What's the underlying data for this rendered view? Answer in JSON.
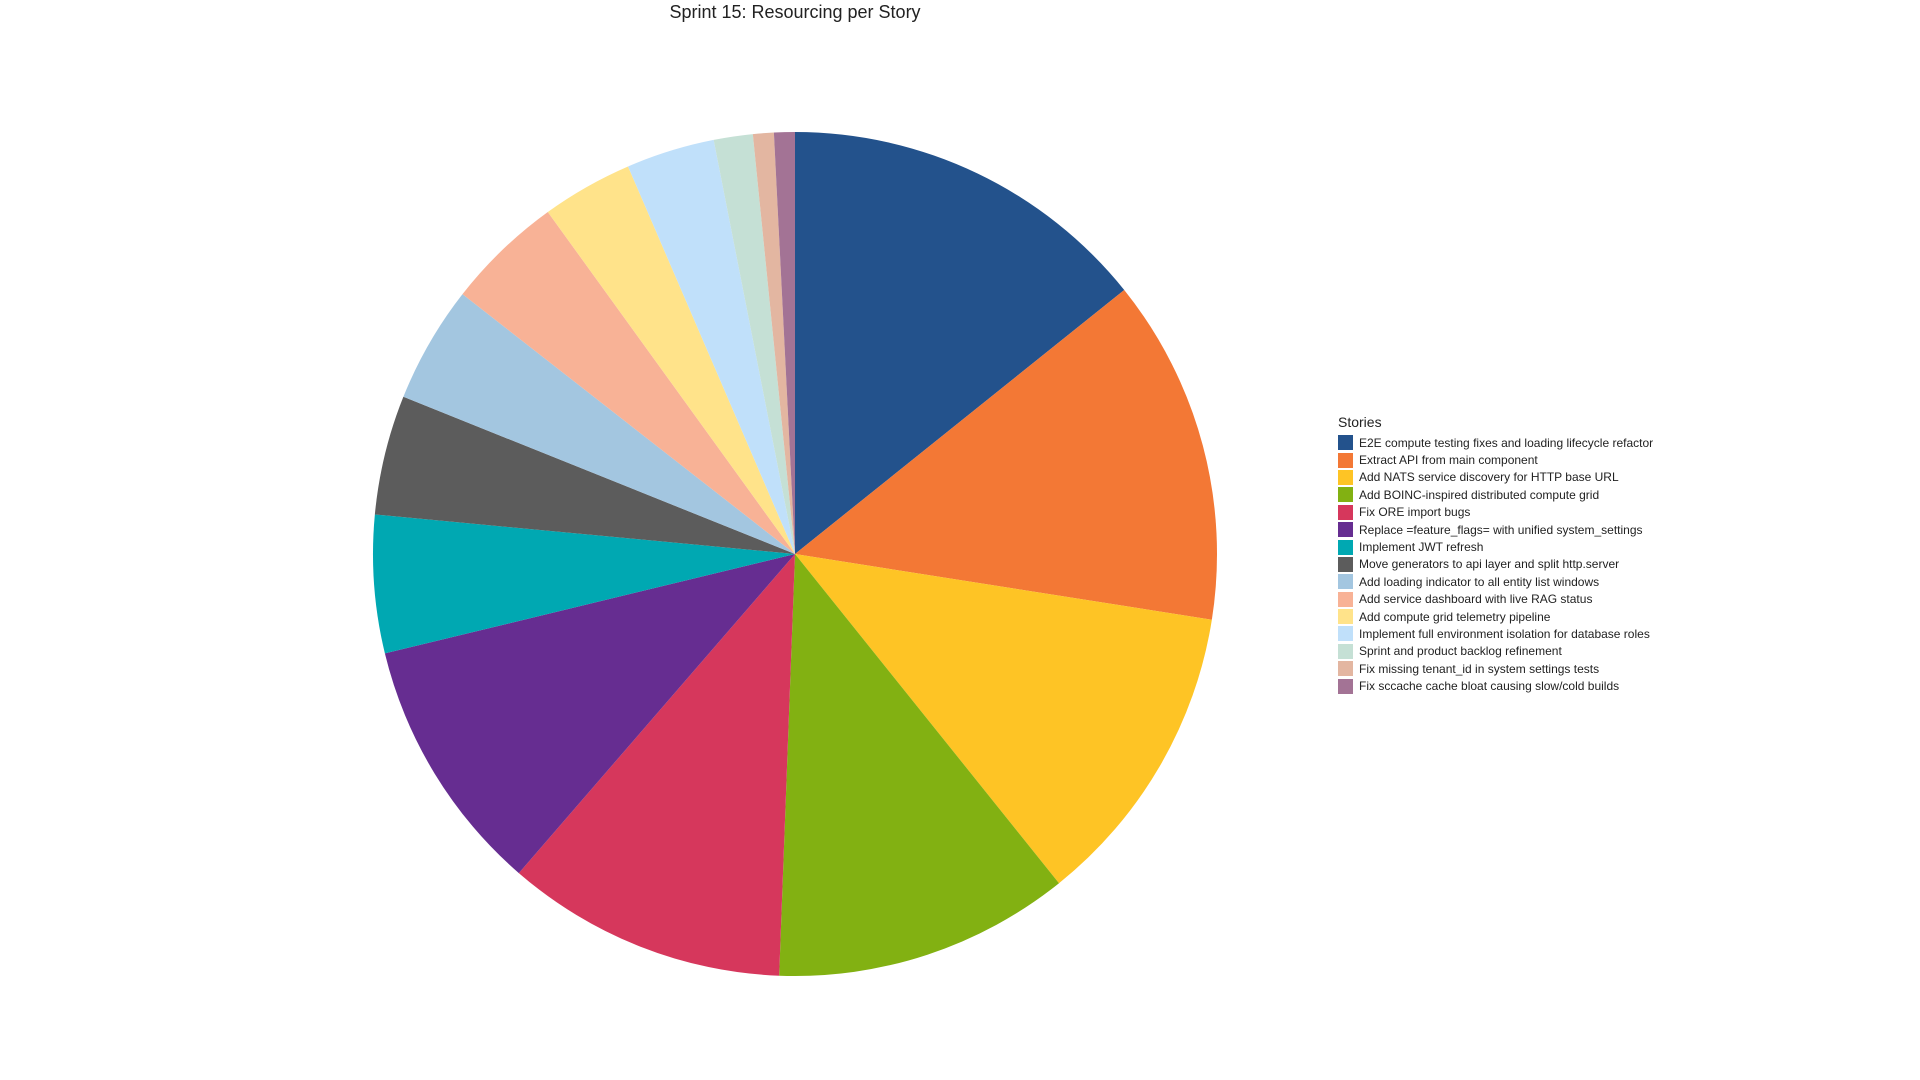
{
  "chart_data": {
    "type": "pie",
    "title": "Sprint 15: Resourcing per Story",
    "legend_title": "Stories",
    "legend_position": "right",
    "start_angle": "12 o'clock, clockwise",
    "slices": [
      {
        "label": "E2E compute testing fixes and loading lifecycle refactor",
        "value": 14.3,
        "color": "#23528C"
      },
      {
        "label": "Extract API from main component",
        "value": 13.3,
        "color": "#F37835"
      },
      {
        "label": "Add NATS service discovery for HTTP base URL",
        "value": 11.8,
        "color": "#FEC425"
      },
      {
        "label": "Add BOINC-inspired distributed compute grid",
        "value": 11.4,
        "color": "#82B112"
      },
      {
        "label": "Fix ORE import bugs",
        "value": 10.8,
        "color": "#D6375C"
      },
      {
        "label": "Replace =feature_flags= with unified system_settings",
        "value": 9.9,
        "color": "#662D91"
      },
      {
        "label": "Implement JWT refresh",
        "value": 5.3,
        "color": "#00A8B2"
      },
      {
        "label": "Move generators to api layer and split http.server",
        "value": 4.6,
        "color": "#5C5C5C"
      },
      {
        "label": "Add loading indicator to all entity list windows",
        "value": 4.5,
        "color": "#A3C6E0"
      },
      {
        "label": "Add service dashboard with live RAG status",
        "value": 4.5,
        "color": "#F8B296"
      },
      {
        "label": "Add compute grid telemetry pipeline",
        "value": 3.5,
        "color": "#FFE38A"
      },
      {
        "label": "Implement full environment isolation for database roles",
        "value": 3.4,
        "color": "#C0E0FA"
      },
      {
        "label": "Sprint and product backlog refinement",
        "value": 1.5,
        "color": "#C5E0D5"
      },
      {
        "label": "Fix missing tenant_id in system settings tests",
        "value": 0.8,
        "color": "#E3B6A1"
      },
      {
        "label": "Fix sccache cache bloat causing slow/cold builds",
        "value": 0.8,
        "color": "#A37395"
      }
    ]
  }
}
